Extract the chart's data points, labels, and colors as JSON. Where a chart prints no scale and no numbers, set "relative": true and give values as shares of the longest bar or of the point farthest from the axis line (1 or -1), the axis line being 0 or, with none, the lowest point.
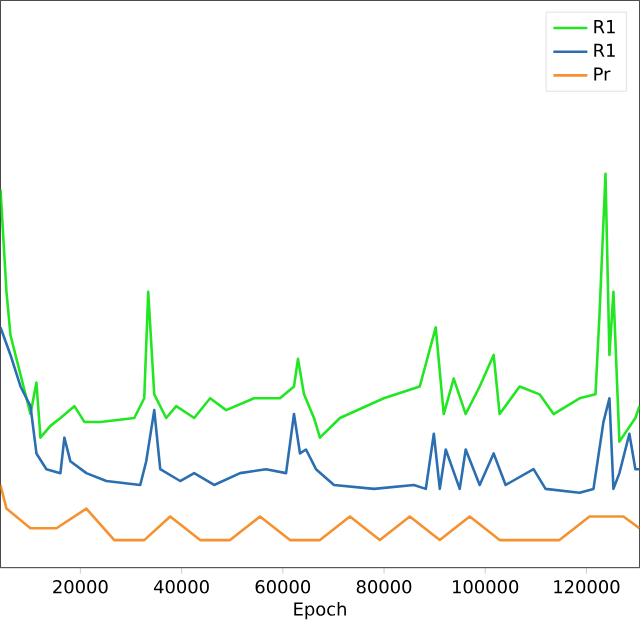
{
  "chart_data": {
    "type": "line",
    "xlabel": "Epoch",
    "relative": true,
    "legend": "top right",
    "grid": false,
    "xlim": [
      4200,
      130500
    ],
    "xticks": [
      20000,
      40000,
      60000,
      80000,
      100000,
      120000
    ],
    "series": [
      {
        "name": "R1",
        "color": "#22e622",
        "x": [
          4220,
          5400,
          6190,
          8170,
          10140,
          11320,
          12110,
          14080,
          16060,
          18820,
          20790,
          23950,
          30650,
          32620,
          33410,
          34600,
          36960,
          38940,
          42490,
          45640,
          48800,
          54320,
          59450,
          62210,
          63000,
          64190,
          66160,
          67340,
          71290,
          79960,
          87060,
          90220,
          91800,
          93770,
          96140,
          98900,
          101660,
          102850,
          106790,
          110740,
          113500,
          118630,
          121780,
          122570,
          123760,
          124540,
          125330,
          126510,
          129670,
          130460
        ],
        "values": [
          0.96,
          0.7,
          0.59,
          0.49,
          0.39,
          0.47,
          0.33,
          0.36,
          0.38,
          0.41,
          0.37,
          0.37,
          0.38,
          0.43,
          0.7,
          0.44,
          0.38,
          0.41,
          0.38,
          0.43,
          0.4,
          0.43,
          0.43,
          0.46,
          0.53,
          0.44,
          0.38,
          0.33,
          0.38,
          0.43,
          0.46,
          0.61,
          0.39,
          0.48,
          0.39,
          0.46,
          0.54,
          0.39,
          0.46,
          0.44,
          0.39,
          0.43,
          0.44,
          0.64,
          1.0,
          0.54,
          0.7,
          0.32,
          0.38,
          0.41
        ]
      },
      {
        "name": "R1",
        "color": "#2c6fb0",
        "x": [
          4220,
          6190,
          8170,
          10140,
          11320,
          13290,
          16060,
          16840,
          18030,
          21180,
          25130,
          31830,
          33010,
          34600,
          35780,
          39720,
          42490,
          46430,
          51560,
          56690,
          60640,
          62210,
          63400,
          64580,
          66560,
          70110,
          78000,
          85890,
          88260,
          89840,
          91020,
          92200,
          94960,
          96140,
          98900,
          101660,
          104030,
          109550,
          111920,
          118630,
          121390,
          123360,
          124540,
          125330,
          126510,
          128480,
          129670,
          130460
        ],
        "values": [
          0.61,
          0.54,
          0.46,
          0.41,
          0.29,
          0.25,
          0.24,
          0.33,
          0.27,
          0.24,
          0.22,
          0.21,
          0.27,
          0.4,
          0.25,
          0.22,
          0.24,
          0.21,
          0.24,
          0.25,
          0.24,
          0.39,
          0.29,
          0.3,
          0.25,
          0.21,
          0.2,
          0.21,
          0.2,
          0.34,
          0.2,
          0.3,
          0.2,
          0.3,
          0.21,
          0.29,
          0.21,
          0.25,
          0.2,
          0.19,
          0.2,
          0.37,
          0.43,
          0.2,
          0.24,
          0.34,
          0.25,
          0.25
        ]
      },
      {
        "name": "Pr",
        "color": "#f5922f",
        "x": [
          4220,
          5400,
          10140,
          15270,
          21180,
          26700,
          32620,
          37750,
          43670,
          49590,
          55500,
          61420,
          67340,
          73260,
          79170,
          85090,
          91010,
          96930,
          102850,
          114680,
          120600,
          127310,
          130460
        ],
        "values": [
          0.21,
          0.15,
          0.1,
          0.1,
          0.15,
          0.07,
          0.07,
          0.13,
          0.07,
          0.07,
          0.13,
          0.07,
          0.07,
          0.13,
          0.07,
          0.13,
          0.07,
          0.13,
          0.07,
          0.07,
          0.13,
          0.13,
          0.1
        ]
      }
    ]
  }
}
